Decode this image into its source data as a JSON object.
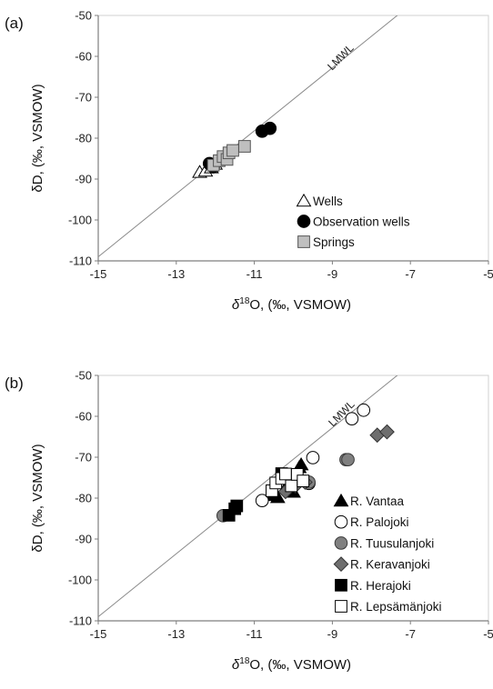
{
  "chart_data": [
    {
      "type": "scatter",
      "panel_label": "(a)",
      "xlabel": {
        "prefix": "δ",
        "sup": "18",
        "main": "O, (‰, VSMOW)"
      },
      "ylabel": "δD, (‰, VSMOW)",
      "xlim": [
        -15,
        -5
      ],
      "ylim": [
        -110,
        -50
      ],
      "xticks": [
        -15,
        -13,
        -11,
        -9,
        -7,
        -5
      ],
      "yticks": [
        -50,
        -60,
        -70,
        -80,
        -90,
        -100,
        -110
      ],
      "grid": false,
      "legend_position": "lower-right",
      "reference_line": {
        "label": "LMWL",
        "points": [
          [
            -15,
            -109
          ],
          [
            -5,
            -32
          ]
        ]
      },
      "series": [
        {
          "name": "Wells",
          "marker": "triangle",
          "fill": "#ffffff",
          "stroke": "#000000",
          "x": [
            -12.4,
            -12.25,
            -12.1,
            -12.0
          ],
          "y": [
            -88.3,
            -88.0,
            -87.2,
            -86.3
          ]
        },
        {
          "name": "Observation wells",
          "marker": "circle",
          "fill": "#000000",
          "stroke": "#000000",
          "x": [
            -12.15,
            -12.05,
            -10.8,
            -10.6
          ],
          "y": [
            -86.2,
            -87.0,
            -78.3,
            -77.6
          ]
        },
        {
          "name": "Springs",
          "marker": "square",
          "fill": "#bfbfbf",
          "stroke": "#555555",
          "x": [
            -12.05,
            -11.9,
            -11.8,
            -11.7,
            -11.65,
            -11.55,
            -11.25
          ],
          "y": [
            -86.6,
            -85.5,
            -84.5,
            -85.2,
            -83.6,
            -83.0,
            -82.0
          ]
        }
      ]
    },
    {
      "type": "scatter",
      "panel_label": "(b)",
      "xlabel": {
        "prefix": "δ",
        "sup": "18",
        "main": "O, (‰, VSMOW)"
      },
      "ylabel": "δD, (‰, VSMOW)",
      "xlim": [
        -15,
        -5
      ],
      "ylim": [
        -110,
        -50
      ],
      "xticks": [
        -15,
        -13,
        -11,
        -9,
        -7,
        -5
      ],
      "yticks": [
        -50,
        -60,
        -70,
        -80,
        -90,
        -100,
        -110
      ],
      "grid": false,
      "legend_position": "lower-right",
      "reference_line": {
        "label": "LMWL",
        "points": [
          [
            -15,
            -109
          ],
          [
            -5,
            -32
          ]
        ]
      },
      "series": [
        {
          "name": "R. Vantaa",
          "marker": "triangle",
          "fill": "#000000",
          "stroke": "#000000",
          "x": [
            -10.6,
            -10.4,
            -10.2,
            -10.0,
            -9.85,
            -9.8
          ],
          "y": [
            -79.3,
            -79.8,
            -77.5,
            -78.5,
            -72.5,
            -71.8
          ]
        },
        {
          "name": "R. Palojoki",
          "marker": "circle",
          "fill": "#ffffff",
          "stroke": "#000000",
          "x": [
            -10.8,
            -9.6,
            -9.5,
            -8.5,
            -8.2
          ],
          "y": [
            -80.6,
            -76.4,
            -70.1,
            -60.6,
            -58.5
          ]
        },
        {
          "name": "R. Tuusulanjoki",
          "marker": "circle",
          "fill": "#808080",
          "stroke": "#3a3a3a",
          "x": [
            -11.8,
            -9.6,
            -8.65,
            -8.6
          ],
          "y": [
            -84.3,
            -76.1,
            -70.6,
            -70.6
          ]
        },
        {
          "name": "R. Keravanjoki",
          "marker": "diamond",
          "fill": "#6e6e6e",
          "stroke": "#333333",
          "x": [
            -10.2,
            -9.95,
            -9.7,
            -7.85,
            -7.6
          ],
          "y": [
            -78.4,
            -77.0,
            -76.1,
            -64.6,
            -63.8
          ]
        },
        {
          "name": "R. Herajoki",
          "marker": "square",
          "fill": "#000000",
          "stroke": "#000000",
          "x": [
            -11.65,
            -11.5,
            -11.45,
            -10.3
          ],
          "y": [
            -84.2,
            -82.6,
            -81.9,
            -74.0
          ]
        },
        {
          "name": "R. Lepsämänjoki",
          "marker": "square",
          "fill": "#ffffff",
          "stroke": "#000000",
          "x": [
            -10.55,
            -10.45,
            -10.3,
            -10.2,
            -10.05,
            -9.9,
            -9.75
          ],
          "y": [
            -78.2,
            -76.3,
            -75.2,
            -74.1,
            -77.0,
            -74.2,
            -75.8
          ]
        }
      ]
    }
  ]
}
